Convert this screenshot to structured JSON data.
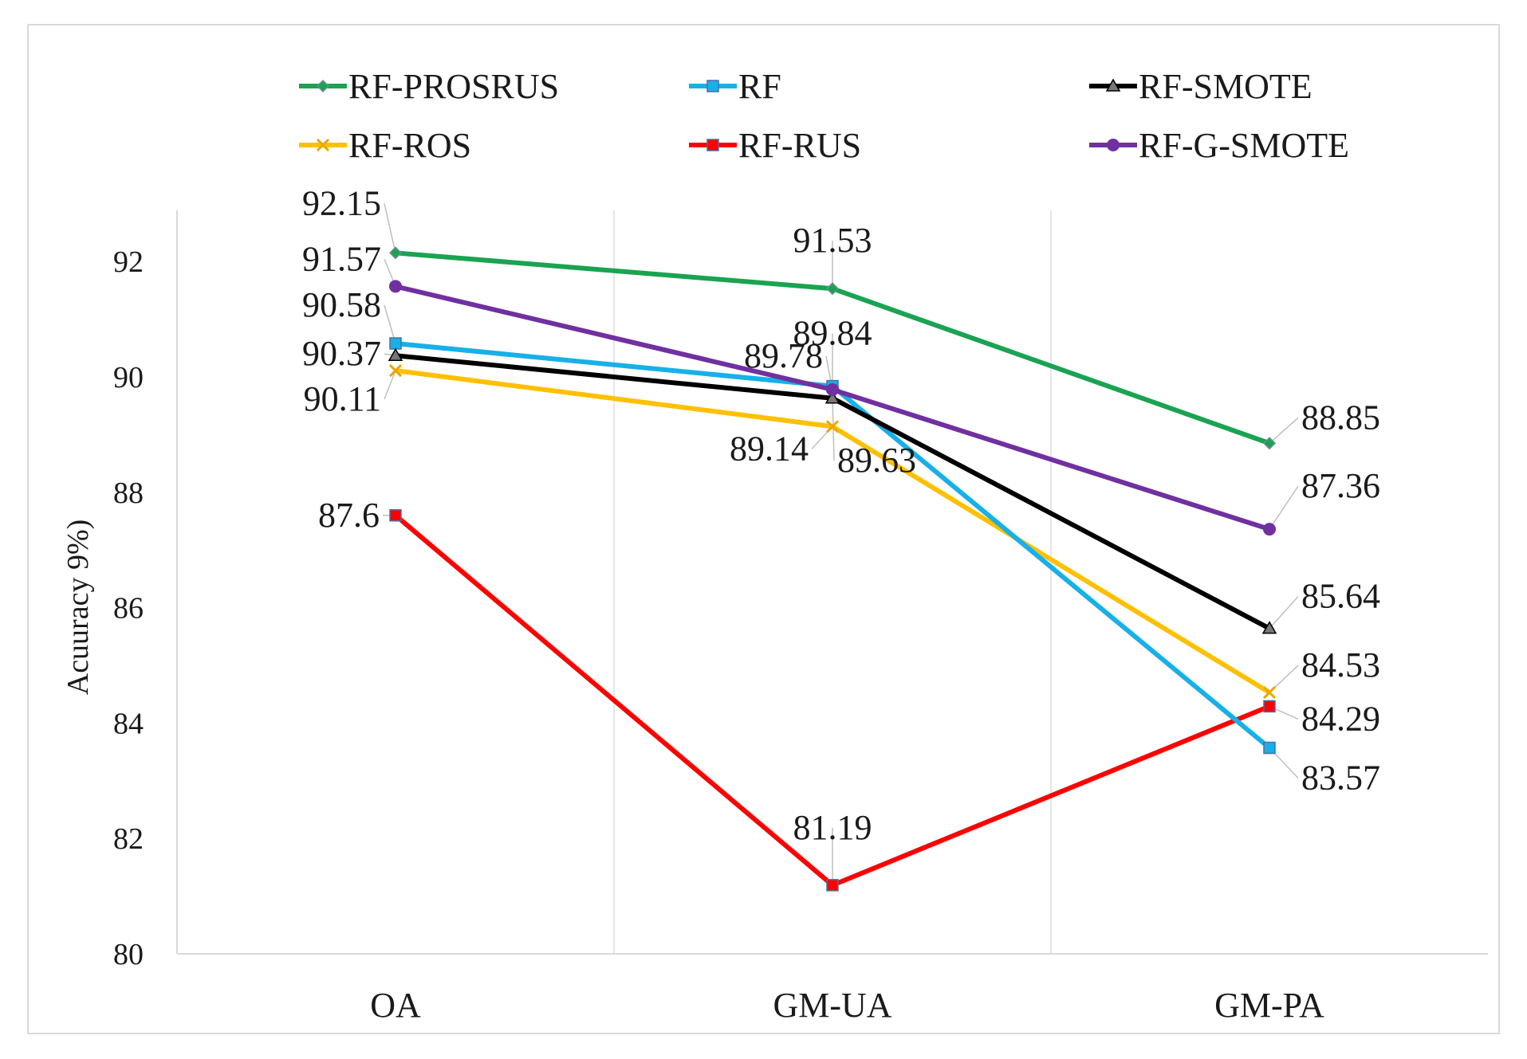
{
  "chart_data": {
    "type": "line",
    "ylabel": "Acuuracy 9%)",
    "ylim": [
      80,
      92.5
    ],
    "yticks": [
      80,
      82,
      84,
      86,
      88,
      90,
      92
    ],
    "categories": [
      "OA",
      "GM-UA",
      "GM-PA"
    ],
    "grid": "vertical",
    "legend_position": "top",
    "series": [
      {
        "name": "RF-PROSRUS",
        "color": "#1aa352",
        "marker": "diamond",
        "values": [
          92.15,
          91.53,
          88.85
        ],
        "labels": [
          "92.15",
          "91.53",
          "88.85"
        ]
      },
      {
        "name": "RF",
        "color": "#17b0e8",
        "marker": "square",
        "values": [
          90.58,
          89.84,
          83.57
        ],
        "labels": [
          "90.58",
          "89.84",
          "83.57"
        ]
      },
      {
        "name": "RF-SMOTE",
        "color": "#000000",
        "marker": "triangle",
        "values": [
          90.37,
          89.63,
          85.64
        ],
        "labels": [
          "90.37",
          "89.63",
          "85.64"
        ]
      },
      {
        "name": "RF-ROS",
        "color": "#ffc000",
        "marker": "x",
        "values": [
          90.11,
          89.14,
          84.53
        ],
        "labels": [
          "90.11",
          "89.14",
          "84.53"
        ]
      },
      {
        "name": "RF-RUS",
        "color": "#ff0000",
        "marker": "square",
        "values": [
          87.6,
          81.19,
          84.29
        ],
        "labels": [
          "87.6",
          "81.19",
          "84.29"
        ]
      },
      {
        "name": "RF-G-SMOTE",
        "color": "#7030a0",
        "marker": "circle",
        "values": [
          91.57,
          89.78,
          87.36
        ],
        "labels": [
          "91.57",
          "89.78",
          "87.36"
        ]
      }
    ]
  }
}
